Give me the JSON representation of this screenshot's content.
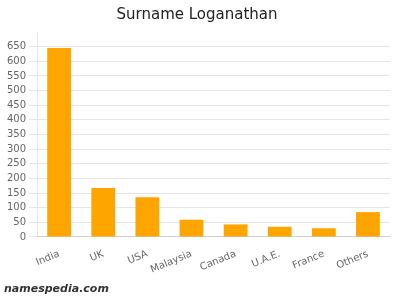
{
  "chart_data": {
    "type": "bar",
    "title": "Surname Loganathan",
    "categories": [
      "India",
      "UK",
      "USA",
      "Malaysia",
      "Canada",
      "U.A.E.",
      "France",
      "Others"
    ],
    "values": [
      645,
      167,
      136,
      59,
      43,
      35,
      30,
      85
    ],
    "color": "#FFA500",
    "ylim": [
      0,
      700
    ],
    "yticks": [
      0,
      50,
      100,
      150,
      200,
      250,
      300,
      350,
      400,
      450,
      500,
      550,
      600,
      650
    ],
    "grid": true,
    "annotation": "namespedia.com"
  }
}
